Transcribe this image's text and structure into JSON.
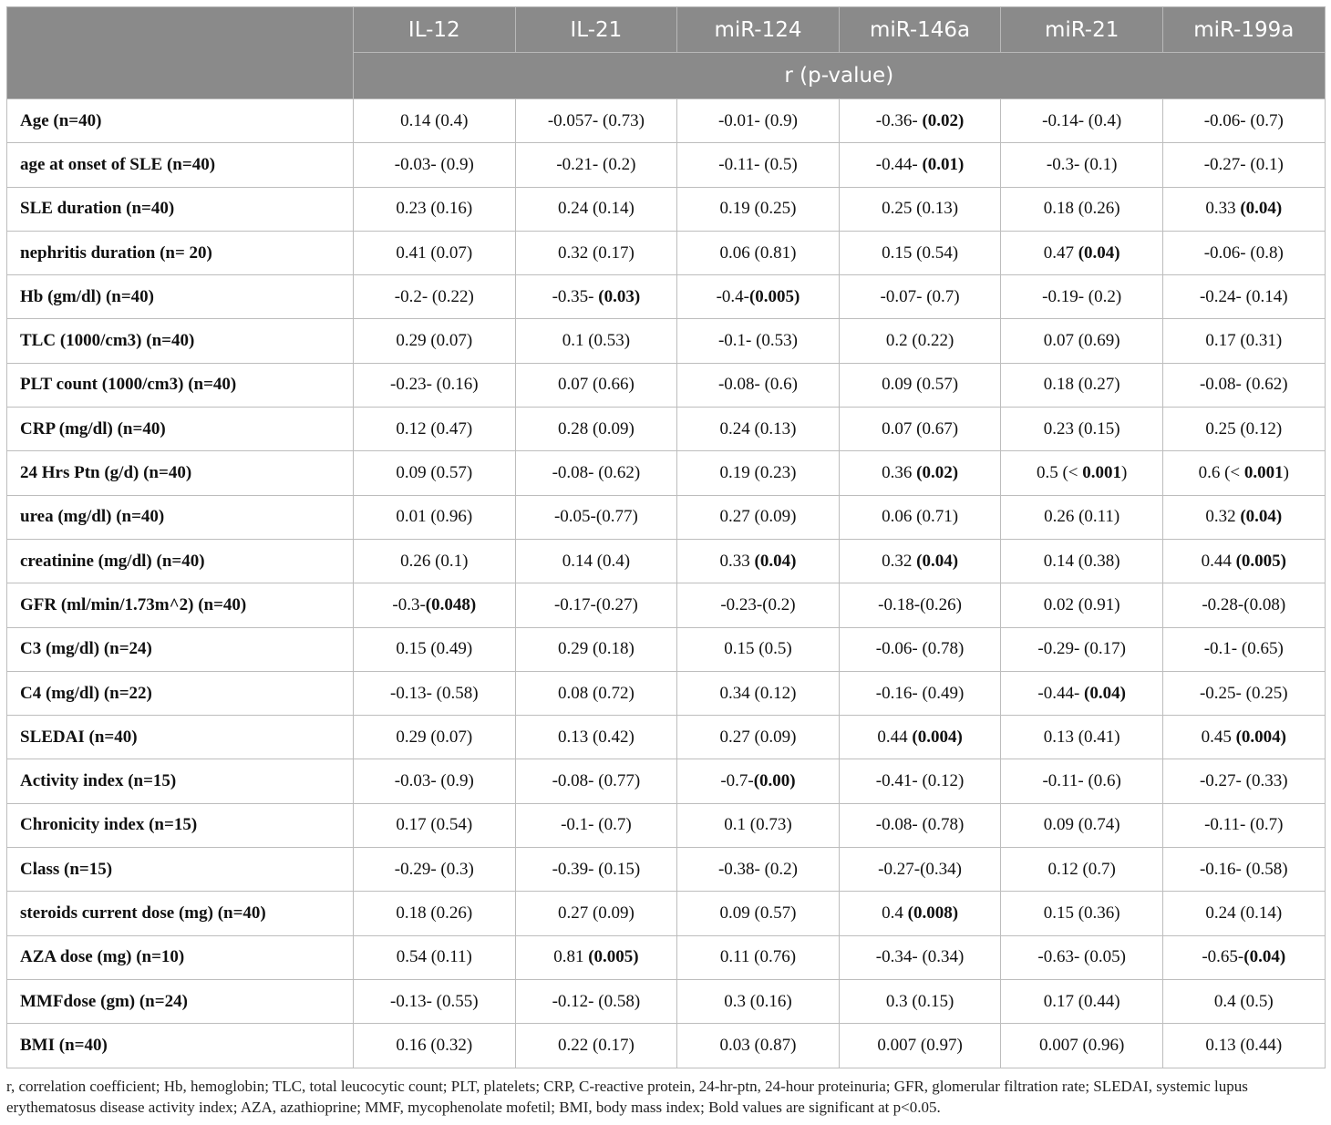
{
  "table": {
    "columns": [
      "IL-12",
      "IL-21",
      "miR-124",
      "miR-146a",
      "miR-21",
      "miR-199a"
    ],
    "subheader": "r (p-value)",
    "rows": [
      {
        "label": "Age (n=40)",
        "cells": [
          {
            "r": "0.14",
            "p": "(0.4)",
            "b": false
          },
          {
            "r": "-0.057-",
            "p": "(0.73)",
            "b": false
          },
          {
            "r": "-0.01-",
            "p": "(0.9)",
            "b": false
          },
          {
            "r": "-0.36-",
            "p": "(0.02)",
            "b": true
          },
          {
            "r": "-0.14-",
            "p": "(0.4)",
            "b": false
          },
          {
            "r": "-0.06-",
            "p": "(0.7)",
            "b": false
          }
        ]
      },
      {
        "label": "age at onset of SLE (n=40)",
        "cells": [
          {
            "r": "-0.03-",
            "p": "(0.9)",
            "b": false
          },
          {
            "r": "-0.21-",
            "p": "(0.2)",
            "b": false
          },
          {
            "r": "-0.11-",
            "p": "(0.5)",
            "b": false
          },
          {
            "r": "-0.44-",
            "p": "(0.01)",
            "b": true
          },
          {
            "r": "-0.3-",
            "p": "(0.1)",
            "b": false
          },
          {
            "r": "-0.27-",
            "p": "(0.1)",
            "b": false
          }
        ]
      },
      {
        "label": "SLE duration (n=40)",
        "cells": [
          {
            "r": "0.23",
            "p": "(0.16)",
            "b": false
          },
          {
            "r": "0.24",
            "p": "(0.14)",
            "b": false
          },
          {
            "r": "0.19",
            "p": "(0.25)",
            "b": false
          },
          {
            "r": "0.25",
            "p": "(0.13)",
            "b": false
          },
          {
            "r": "0.18",
            "p": "(0.26)",
            "b": false
          },
          {
            "r": "0.33",
            "p": "(0.04)",
            "b": true
          }
        ]
      },
      {
        "label": "nephritis duration (n= 20)",
        "cells": [
          {
            "r": "0.41",
            "p": "(0.07)",
            "b": false
          },
          {
            "r": "0.32",
            "p": "(0.17)",
            "b": false
          },
          {
            "r": "0.06",
            "p": "(0.81)",
            "b": false
          },
          {
            "r": "0.15",
            "p": "(0.54)",
            "b": false
          },
          {
            "r": "0.47",
            "p": "(0.04)",
            "b": true
          },
          {
            "r": "-0.06-",
            "p": "(0.8)",
            "b": false
          }
        ]
      },
      {
        "label": "Hb (gm/dl) (n=40)",
        "cells": [
          {
            "r": "-0.2-",
            "p": "(0.22)",
            "b": false
          },
          {
            "r": "-0.35-",
            "p": "(0.03)",
            "b": true
          },
          {
            "r": "-0.4-",
            "p": "(0.005)",
            "b": true,
            "tight": true
          },
          {
            "r": "-0.07-",
            "p": "(0.7)",
            "b": false
          },
          {
            "r": "-0.19-",
            "p": "(0.2)",
            "b": false
          },
          {
            "r": "-0.24-",
            "p": "(0.14)",
            "b": false
          }
        ]
      },
      {
        "label": "TLC (1000/cm3) (n=40)",
        "cells": [
          {
            "r": "0.29",
            "p": "(0.07)",
            "b": false
          },
          {
            "r": "0.1",
            "p": "(0.53)",
            "b": false
          },
          {
            "r": "-0.1-",
            "p": "(0.53)",
            "b": false
          },
          {
            "r": "0.2",
            "p": "(0.22)",
            "b": false
          },
          {
            "r": "0.07",
            "p": "(0.69)",
            "b": false
          },
          {
            "r": "0.17",
            "p": "(0.31)",
            "b": false
          }
        ]
      },
      {
        "label": "PLT count (1000/cm3) (n=40)",
        "cells": [
          {
            "r": "-0.23-",
            "p": "(0.16)",
            "b": false
          },
          {
            "r": "0.07",
            "p": "(0.66)",
            "b": false
          },
          {
            "r": "-0.08-",
            "p": "(0.6)",
            "b": false
          },
          {
            "r": "0.09",
            "p": "(0.57)",
            "b": false
          },
          {
            "r": "0.18",
            "p": "(0.27)",
            "b": false
          },
          {
            "r": "-0.08-",
            "p": "(0.62)",
            "b": false
          }
        ]
      },
      {
        "label": "CRP (mg/dl) (n=40)",
        "cells": [
          {
            "r": "0.12",
            "p": "(0.47)",
            "b": false
          },
          {
            "r": "0.28",
            "p": "(0.09)",
            "b": false
          },
          {
            "r": "0.24",
            "p": "(0.13)",
            "b": false
          },
          {
            "r": "0.07",
            "p": "(0.67)",
            "b": false
          },
          {
            "r": "0.23",
            "p": "(0.15)",
            "b": false
          },
          {
            "r": "0.25",
            "p": "(0.12)",
            "b": false
          }
        ]
      },
      {
        "label": "24 Hrs Ptn (g/d) (n=40)",
        "cells": [
          {
            "r": "0.09",
            "p": "(0.57)",
            "b": false
          },
          {
            "r": "-0.08-",
            "p": "(0.62)",
            "b": false
          },
          {
            "r": "0.19",
            "p": "(0.23)",
            "b": false
          },
          {
            "r": "0.36",
            "p": "(0.02)",
            "b": true
          },
          {
            "r": "0.5",
            "p": "(< 0.001)",
            "b": true
          },
          {
            "r": "0.6",
            "p": "(< 0.001)",
            "b": true
          }
        ]
      },
      {
        "label": "urea (mg/dl) (n=40)",
        "cells": [
          {
            "r": "0.01",
            "p": "(0.96)",
            "b": false
          },
          {
            "r": "-0.05-",
            "p": "(0.77)",
            "b": false,
            "tight": true
          },
          {
            "r": "0.27",
            "p": "(0.09)",
            "b": false
          },
          {
            "r": "0.06",
            "p": "(0.71)",
            "b": false
          },
          {
            "r": "0.26",
            "p": "(0.11)",
            "b": false
          },
          {
            "r": "0.32",
            "p": "(0.04)",
            "b": true
          }
        ]
      },
      {
        "label": "creatinine (mg/dl) (n=40)",
        "cells": [
          {
            "r": "0.26",
            "p": "(0.1)",
            "b": false
          },
          {
            "r": "0.14",
            "p": "(0.4)",
            "b": false
          },
          {
            "r": "0.33",
            "p": "(0.04)",
            "b": true
          },
          {
            "r": "0.32",
            "p": "(0.04)",
            "b": true
          },
          {
            "r": "0.14",
            "p": "(0.38)",
            "b": false
          },
          {
            "r": "0.44",
            "p": "(0.005)",
            "b": true
          }
        ]
      },
      {
        "label": "GFR (ml/min/1.73m^2) (n=40)",
        "cells": [
          {
            "r": "-0.3-",
            "p": "(0.048)",
            "b": true,
            "tight": true
          },
          {
            "r": "-0.17-",
            "p": "(0.27)",
            "b": false,
            "tight": true
          },
          {
            "r": "-0.23-",
            "p": "(0.2)",
            "b": false,
            "tight": true
          },
          {
            "r": "-0.18-",
            "p": "(0.26)",
            "b": false,
            "tight": true
          },
          {
            "r": "0.02",
            "p": "(0.91)",
            "b": false
          },
          {
            "r": "-0.28-",
            "p": "(0.08)",
            "b": false,
            "tight": true
          }
        ]
      },
      {
        "label": "C3 (mg/dl) (n=24)",
        "cells": [
          {
            "r": "0.15",
            "p": "(0.49)",
            "b": false
          },
          {
            "r": "0.29",
            "p": "(0.18)",
            "b": false
          },
          {
            "r": "0.15",
            "p": "(0.5)",
            "b": false
          },
          {
            "r": "-0.06-",
            "p": "(0.78)",
            "b": false
          },
          {
            "r": "-0.29-",
            "p": "(0.17)",
            "b": false
          },
          {
            "r": "-0.1-",
            "p": "(0.65)",
            "b": false
          }
        ]
      },
      {
        "label": "C4 (mg/dl) (n=22)",
        "cells": [
          {
            "r": "-0.13-",
            "p": "(0.58)",
            "b": false
          },
          {
            "r": "0.08",
            "p": "(0.72)",
            "b": false
          },
          {
            "r": "0.34",
            "p": "(0.12)",
            "b": false
          },
          {
            "r": "-0.16-",
            "p": "(0.49)",
            "b": false
          },
          {
            "r": "-0.44-",
            "p": "(0.04)",
            "b": true
          },
          {
            "r": "-0.25-",
            "p": "(0.25)",
            "b": false
          }
        ]
      },
      {
        "label": "SLEDAI (n=40)",
        "cells": [
          {
            "r": "0.29",
            "p": "(0.07)",
            "b": false
          },
          {
            "r": "0.13",
            "p": "(0.42)",
            "b": false
          },
          {
            "r": "0.27",
            "p": "(0.09)",
            "b": false
          },
          {
            "r": "0.44",
            "p": "(0.004)",
            "b": true
          },
          {
            "r": "0.13",
            "p": "(0.41)",
            "b": false
          },
          {
            "r": "0.45",
            "p": "(0.004)",
            "b": true
          }
        ]
      },
      {
        "label": "Activity index (n=15)",
        "cells": [
          {
            "r": "-0.03-",
            "p": "(0.9)",
            "b": false
          },
          {
            "r": "-0.08-",
            "p": "(0.77)",
            "b": false
          },
          {
            "r": "-0.7-",
            "p": "(0.00)",
            "b": true,
            "tight": true
          },
          {
            "r": "-0.41-",
            "p": "(0.12)",
            "b": false
          },
          {
            "r": "-0.11-",
            "p": "(0.6)",
            "b": false
          },
          {
            "r": "-0.27-",
            "p": "(0.33)",
            "b": false
          }
        ]
      },
      {
        "label": "Chronicity index (n=15)",
        "cells": [
          {
            "r": "0.17",
            "p": "(0.54)",
            "b": false
          },
          {
            "r": "-0.1-",
            "p": "(0.7)",
            "b": false
          },
          {
            "r": "0.1",
            "p": "(0.73)",
            "b": false
          },
          {
            "r": "-0.08-",
            "p": "(0.78)",
            "b": false
          },
          {
            "r": "0.09",
            "p": "(0.74)",
            "b": false
          },
          {
            "r": "-0.11-",
            "p": "(0.7)",
            "b": false
          }
        ]
      },
      {
        "label": "Class (n=15)",
        "cells": [
          {
            "r": "-0.29-",
            "p": "(0.3)",
            "b": false
          },
          {
            "r": "-0.39-",
            "p": "(0.15)",
            "b": false
          },
          {
            "r": "-0.38-",
            "p": "(0.2)",
            "b": false
          },
          {
            "r": "-0.27-",
            "p": "(0.34)",
            "b": false,
            "tight": true
          },
          {
            "r": "0.12",
            "p": "(0.7)",
            "b": false
          },
          {
            "r": "-0.16-",
            "p": "(0.58)",
            "b": false
          }
        ]
      },
      {
        "label": "steroids current dose (mg) (n=40)",
        "cells": [
          {
            "r": "0.18",
            "p": "(0.26)",
            "b": false
          },
          {
            "r": "0.27",
            "p": "(0.09)",
            "b": false
          },
          {
            "r": "0.09",
            "p": "(0.57)",
            "b": false
          },
          {
            "r": "0.4",
            "p": "(0.008)",
            "b": true
          },
          {
            "r": "0.15",
            "p": "(0.36)",
            "b": false
          },
          {
            "r": "0.24",
            "p": "(0.14)",
            "b": false
          }
        ]
      },
      {
        "label": "AZA dose (mg) (n=10)",
        "cells": [
          {
            "r": "0.54",
            "p": "(0.11)",
            "b": false
          },
          {
            "r": "0.81",
            "p": "(0.005)",
            "b": true
          },
          {
            "r": "0.11",
            "p": "(0.76)",
            "b": false
          },
          {
            "r": "-0.34-",
            "p": "(0.34)",
            "b": false
          },
          {
            "r": "-0.63-",
            "p": "(0.05)",
            "b": false
          },
          {
            "r": "-0.65-",
            "p": "(0.04)",
            "b": true,
            "tight": true
          }
        ]
      },
      {
        "label": "MMFdose (gm) (n=24)",
        "cells": [
          {
            "r": "-0.13-",
            "p": "(0.55)",
            "b": false
          },
          {
            "r": "-0.12-",
            "p": "(0.58)",
            "b": false
          },
          {
            "r": "0.3",
            "p": "(0.16)",
            "b": false
          },
          {
            "r": "0.3",
            "p": "(0.15)",
            "b": false
          },
          {
            "r": "0.17",
            "p": "(0.44)",
            "b": false
          },
          {
            "r": "0.4",
            "p": "(0.5)",
            "b": false
          }
        ]
      },
      {
        "label": "BMI (n=40)",
        "cells": [
          {
            "r": "0.16",
            "p": "(0.32)",
            "b": false
          },
          {
            "r": "0.22",
            "p": "(0.17)",
            "b": false
          },
          {
            "r": "0.03",
            "p": "(0.87)",
            "b": false
          },
          {
            "r": "0.007",
            "p": "(0.97)",
            "b": false
          },
          {
            "r": "0.007",
            "p": "(0.96)",
            "b": false
          },
          {
            "r": "0.13",
            "p": "(0.44)",
            "b": false
          }
        ]
      }
    ]
  },
  "footnote": "r, correlation coefficient; Hb, hemoglobin; TLC, total leucocytic count; PLT, platelets; CRP, C-reactive protein, 24-hr-ptn, 24-hour proteinuria; GFR, glomerular filtration rate; SLEDAI, systemic lupus erythematosus disease activity index; AZA, azathioprine; MMF, mycophenolate mofetil; BMI, body mass index; Bold values are significant at p<0.05."
}
